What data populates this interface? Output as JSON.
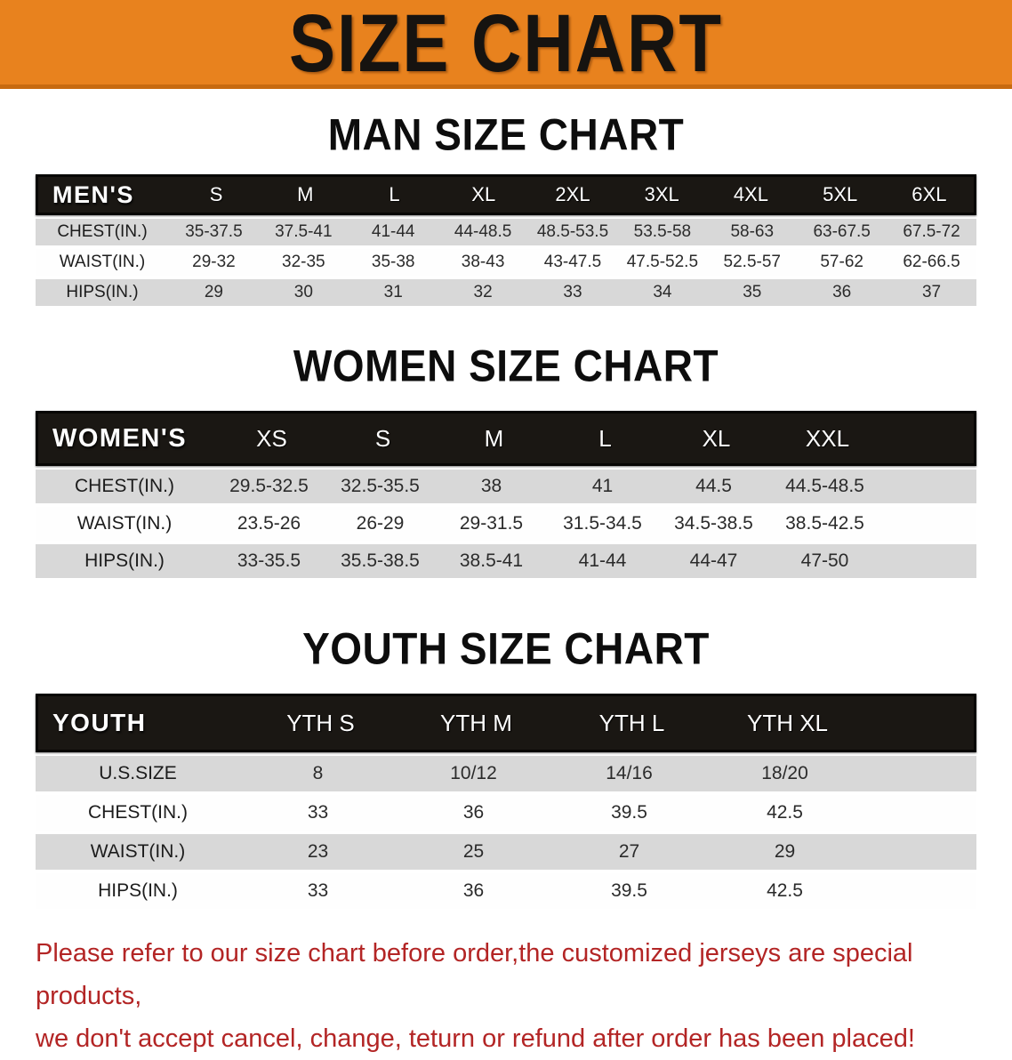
{
  "banner": {
    "title": "SIZE CHART",
    "bg_color": "#e8821e",
    "edge_color": "#c76a10"
  },
  "colors": {
    "header_bar": "#1a1713",
    "row_gray": "#d8d8d8",
    "disclaimer_red": "#b32525"
  },
  "sections": [
    {
      "heading": "MAN SIZE CHART",
      "header_label": "MEN'S",
      "columns": [
        "S",
        "M",
        "L",
        "XL",
        "2XL",
        "3XL",
        "4XL",
        "5XL",
        "6XL"
      ],
      "rows": [
        {
          "label": "CHEST(IN.)",
          "values": [
            "35-37.5",
            "37.5-41",
            "41-44",
            "44-48.5",
            "48.5-53.5",
            "53.5-58",
            "58-63",
            "63-67.5",
            "67.5-72"
          ]
        },
        {
          "label": "WAIST(IN.)",
          "values": [
            "29-32",
            "32-35",
            "35-38",
            "38-43",
            "43-47.5",
            "47.5-52.5",
            "52.5-57",
            "57-62",
            "62-66.5"
          ]
        },
        {
          "label": "HIPS(IN.)",
          "values": [
            "29",
            "30",
            "31",
            "32",
            "33",
            "34",
            "35",
            "36",
            "37"
          ]
        }
      ]
    },
    {
      "heading": "WOMEN SIZE CHART",
      "header_label": "WOMEN'S",
      "columns": [
        "XS",
        "S",
        "M",
        "L",
        "XL",
        "XXL"
      ],
      "rows": [
        {
          "label": "CHEST(IN.)",
          "values": [
            "29.5-32.5",
            "32.5-35.5",
            "38",
            "41",
            "44.5",
            "44.5-48.5"
          ]
        },
        {
          "label": "WAIST(IN.)",
          "values": [
            "23.5-26",
            "26-29",
            "29-31.5",
            "31.5-34.5",
            "34.5-38.5",
            "38.5-42.5"
          ]
        },
        {
          "label": "HIPS(IN.)",
          "values": [
            "33-35.5",
            "35.5-38.5",
            "38.5-41",
            "41-44",
            "44-47",
            "47-50"
          ]
        }
      ]
    },
    {
      "heading": "YOUTH SIZE CHART",
      "header_label": "YOUTH",
      "columns": [
        "YTH S",
        "YTH M",
        "YTH L",
        "YTH XL"
      ],
      "rows": [
        {
          "label": "U.S.SIZE",
          "values": [
            "8",
            "10/12",
            "14/16",
            "18/20"
          ]
        },
        {
          "label": "CHEST(IN.)",
          "values": [
            "33",
            "36",
            "39.5",
            "42.5"
          ]
        },
        {
          "label": "WAIST(IN.)",
          "values": [
            "23",
            "25",
            "27",
            "29"
          ]
        },
        {
          "label": "HIPS(IN.)",
          "values": [
            "33",
            "36",
            "39.5",
            "42.5"
          ]
        }
      ]
    }
  ],
  "disclaimer": {
    "line1": "Please refer to our size chart before order,the customized jerseys are special products,",
    "line2": "we don't accept cancel, change, teturn or refund after order has been placed!"
  }
}
